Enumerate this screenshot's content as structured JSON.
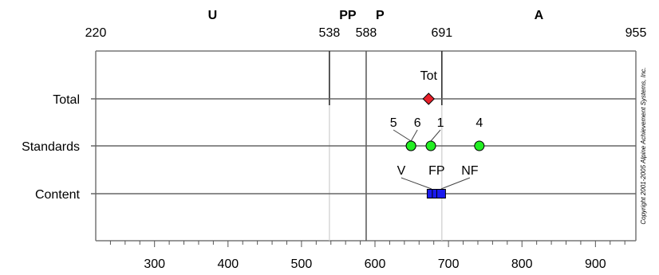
{
  "chart_data": {
    "type": "scatter",
    "title": "",
    "xlim": [
      220,
      955
    ],
    "x_ticks": [
      300,
      400,
      500,
      600,
      700,
      800,
      900
    ],
    "grid": false,
    "legend": "none",
    "categories": [
      "Total",
      "Standards",
      "Content"
    ],
    "bands": [
      {
        "label": "U",
        "start": 220,
        "end": 538
      },
      {
        "label": "PP",
        "start": 538,
        "end": 588
      },
      {
        "label": "P",
        "start": 588,
        "end": 691
      },
      {
        "label": "A",
        "start": 691,
        "end": 955
      }
    ],
    "cutpoints": [
      220,
      538,
      588,
      691,
      955
    ],
    "cut_lines": [
      538,
      588,
      691
    ],
    "series": [
      {
        "category": "Total",
        "marker": "diamond",
        "color": "#e8202a",
        "points": [
          {
            "label": "Tot",
            "x": 673
          }
        ]
      },
      {
        "category": "Standards",
        "marker": "circle",
        "color": "#22ee22",
        "points": [
          {
            "label": "5",
            "x": 649
          },
          {
            "label": "6",
            "x": 649
          },
          {
            "label": "1",
            "x": 676
          },
          {
            "label": "4",
            "x": 742
          }
        ]
      },
      {
        "category": "Content",
        "marker": "square",
        "color": "#1a1aee",
        "points": [
          {
            "label": "V",
            "x": 677
          },
          {
            "label": "FP",
            "x": 684
          },
          {
            "label": "NF",
            "x": 690
          }
        ]
      }
    ]
  },
  "copyright": "Copyright 2001-2005 Alpine Achievement Systems, Inc."
}
